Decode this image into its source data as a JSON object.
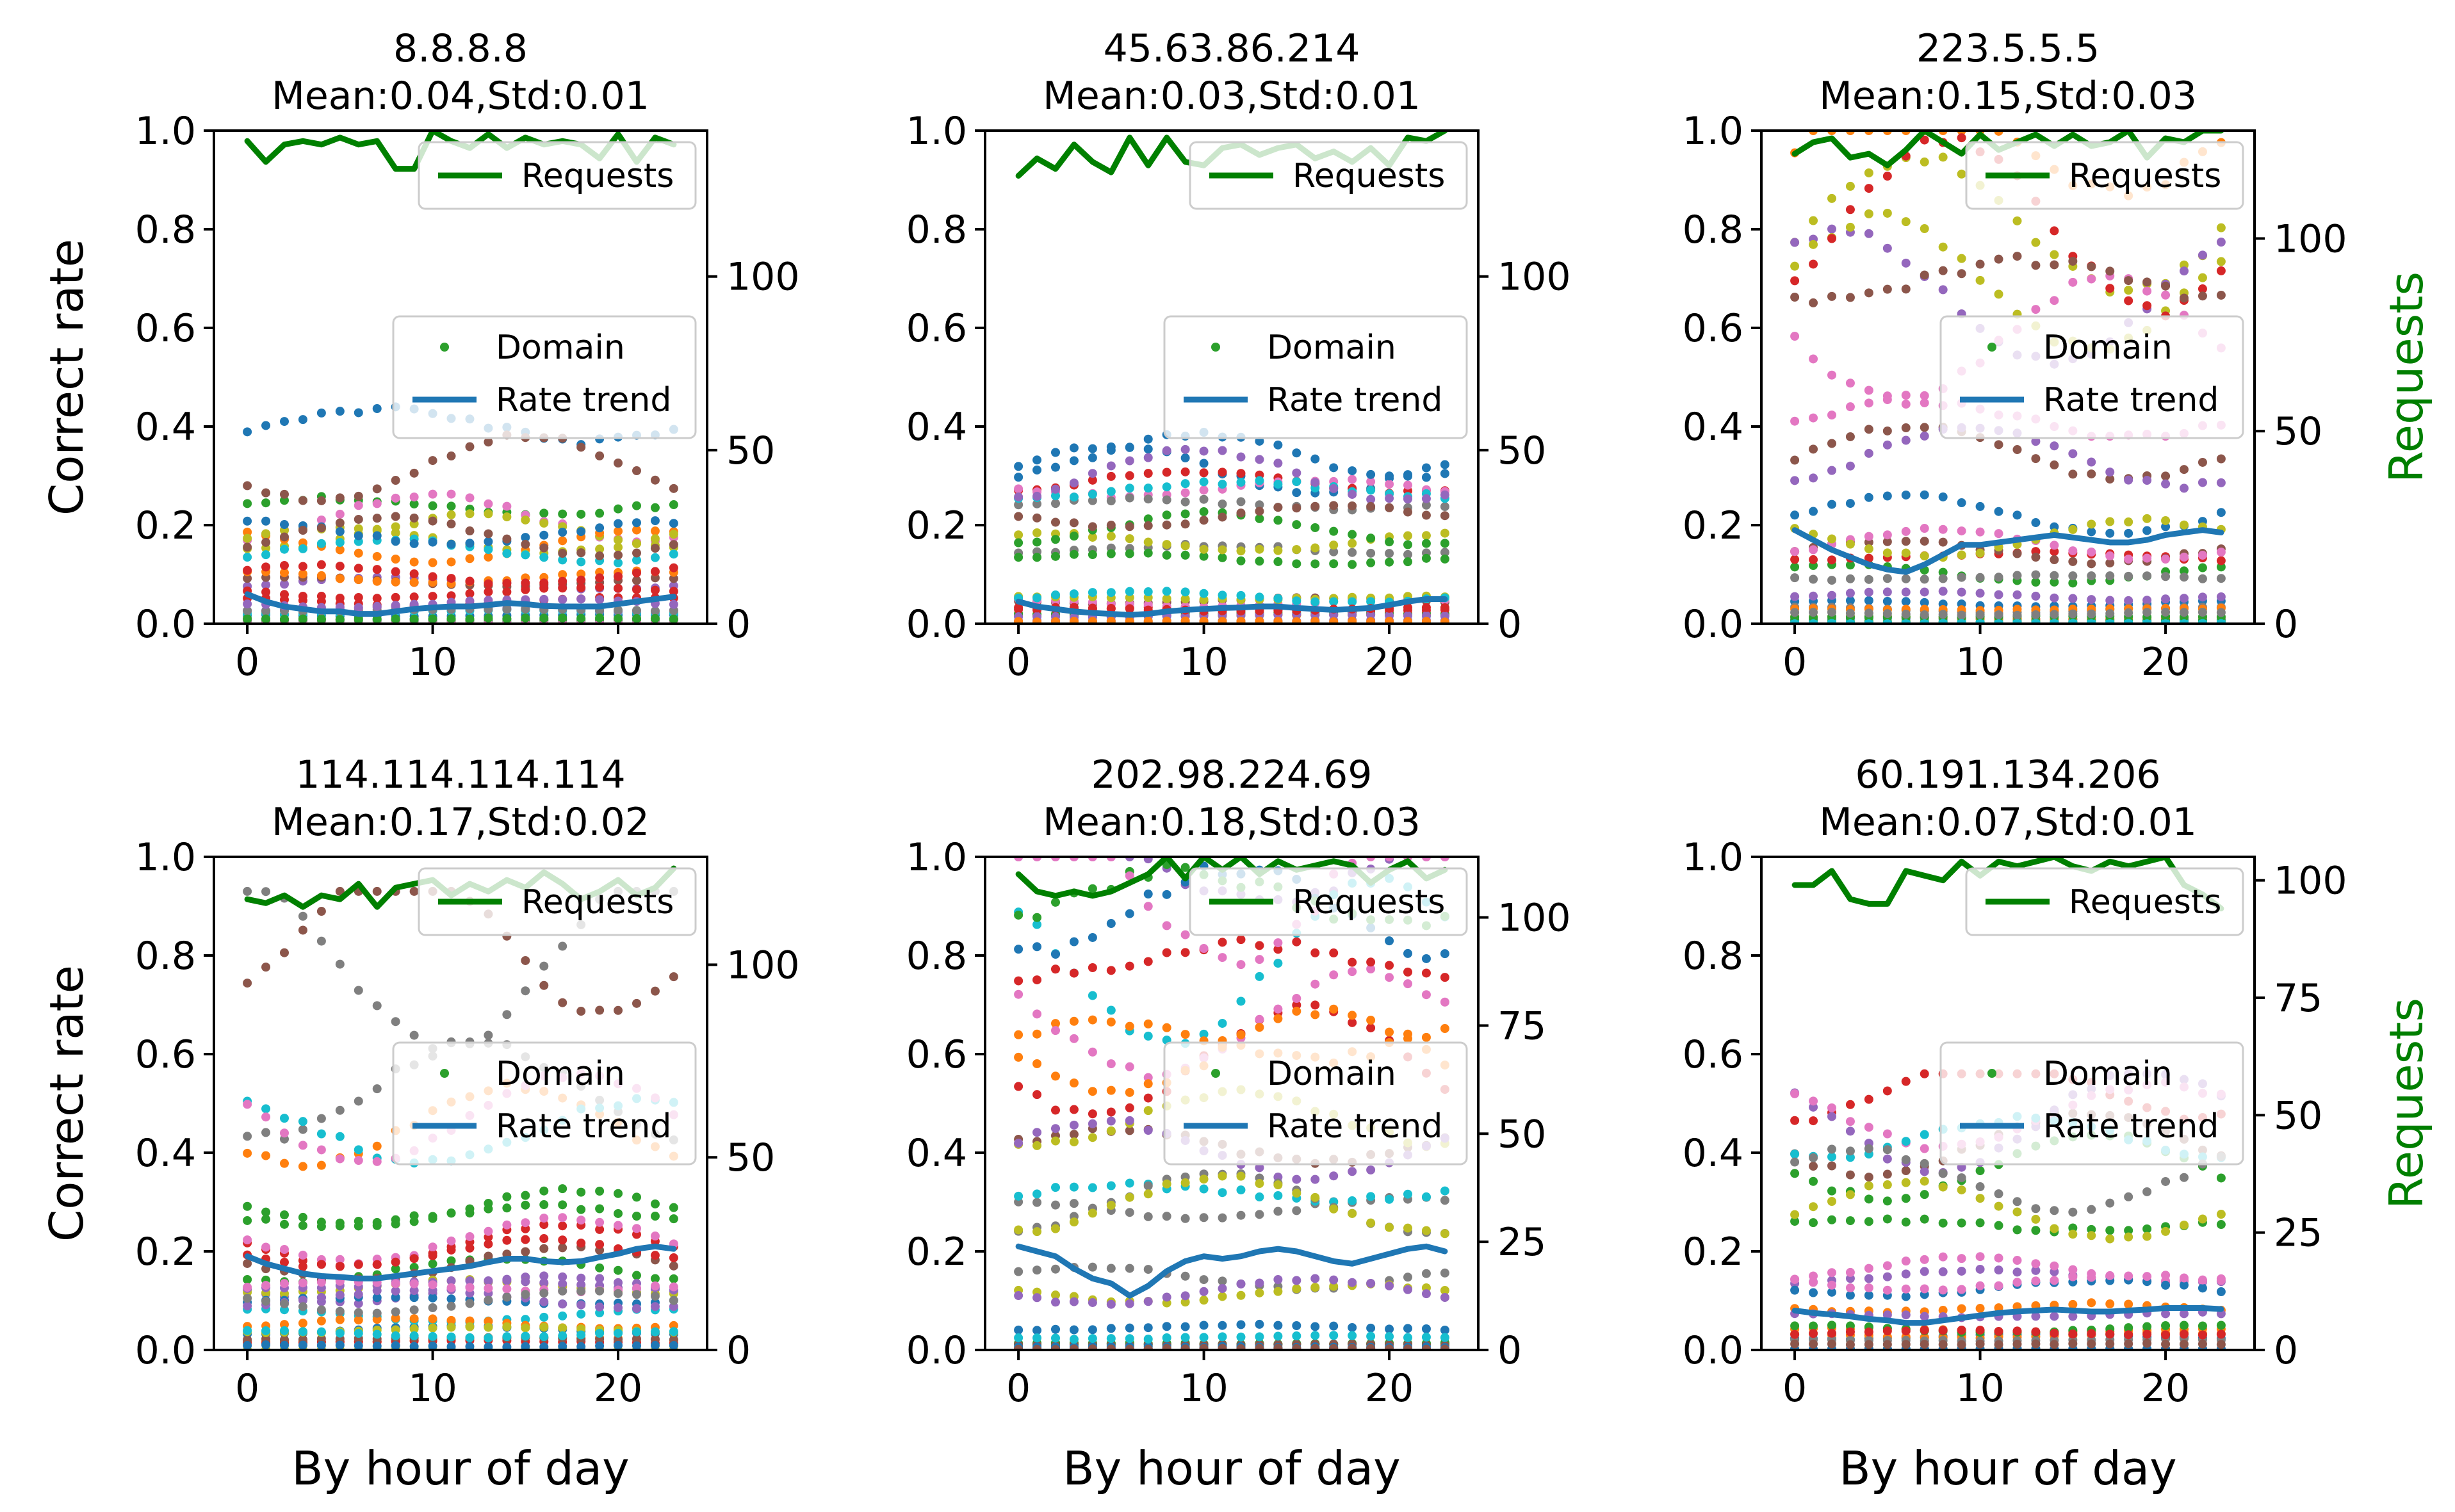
{
  "chart_data": {
    "type": "scatter",
    "layout": "2x3 grid of subplots with secondary (twin) y-axis",
    "shared": {
      "xlabel": "By hour of day",
      "ylabel_left": "Correct rate",
      "ylabel_right": "Requests",
      "ylim_left": [
        0,
        1
      ],
      "yticks_left": [
        "0.0",
        "0.2",
        "0.4",
        "0.6",
        "0.8",
        "1.0"
      ],
      "xlim": [
        -1.8,
        24.8
      ],
      "xticks": [
        0,
        10,
        20
      ],
      "xtick_labels": [
        "0",
        "10",
        "20"
      ],
      "hours": [
        0,
        1,
        2,
        3,
        4,
        5,
        6,
        7,
        8,
        9,
        10,
        11,
        12,
        13,
        14,
        15,
        16,
        17,
        18,
        19,
        20,
        21,
        22,
        23
      ],
      "legend_requests": "Requests",
      "legend_domain": "Domain",
      "legend_rate_trend": "Rate trend",
      "colors": {
        "requests": "#008000",
        "rate_trend": "#1f77b4",
        "ylabel_right": "#007f00",
        "domain_palette": [
          "#1f77b4",
          "#ff7f0e",
          "#2ca02c",
          "#d62728",
          "#9467bd",
          "#8c564b",
          "#e377c2",
          "#7f7f7f",
          "#bcbd22",
          "#17becf"
        ]
      }
    },
    "panels": [
      {
        "title_ip": "8.8.8.8",
        "title_stats": "Mean:0.04,Std:0.01",
        "right_ylim": [
          0,
          142
        ],
        "right_yticks": [
          0,
          50,
          100
        ],
        "requests": [
          139,
          133,
          138,
          139,
          138,
          140,
          138,
          139,
          131,
          131,
          142,
          139,
          137,
          141,
          137,
          140,
          138,
          139,
          138,
          134,
          141,
          133,
          140,
          138
        ],
        "rate_trend": [
          0.06,
          0.045,
          0.035,
          0.03,
          0.025,
          0.025,
          0.02,
          0.02,
          0.025,
          0.03,
          0.033,
          0.035,
          0.035,
          0.038,
          0.042,
          0.04,
          0.036,
          0.035,
          0.035,
          0.035,
          0.04,
          0.045,
          0.05,
          0.055
        ],
        "domain_max": 0.45,
        "domain_count": 26,
        "domain_seed": 11
      },
      {
        "title_ip": "45.63.86.214",
        "title_stats": "Mean:0.03,Std:0.01",
        "right_ylim": [
          0,
          142
        ],
        "right_yticks": [
          0,
          50,
          100
        ],
        "requests": [
          129,
          134,
          131,
          138,
          133,
          130,
          140,
          132,
          140,
          133,
          132,
          137,
          138,
          135,
          137,
          138,
          134,
          136,
          133,
          137,
          132,
          140,
          139,
          142
        ],
        "rate_trend": [
          0.045,
          0.035,
          0.03,
          0.025,
          0.022,
          0.02,
          0.018,
          0.02,
          0.025,
          0.028,
          0.03,
          0.032,
          0.033,
          0.035,
          0.035,
          0.032,
          0.03,
          0.028,
          0.03,
          0.032,
          0.038,
          0.045,
          0.05,
          0.05
        ],
        "domain_max": 0.42,
        "domain_count": 26,
        "domain_seed": 23
      },
      {
        "title_ip": "223.5.5.5",
        "title_stats": "Mean:0.15,Std:0.03",
        "right_ylim": [
          0,
          128
        ],
        "right_yticks": [
          0,
          50,
          100
        ],
        "requests": [
          122,
          125,
          126,
          121,
          122,
          119,
          123,
          128,
          125,
          122,
          127,
          123,
          125,
          127,
          124,
          127,
          124,
          125,
          128,
          121,
          126,
          125,
          128,
          128
        ],
        "rate_trend": [
          0.19,
          0.17,
          0.15,
          0.135,
          0.12,
          0.11,
          0.105,
          0.12,
          0.14,
          0.16,
          0.16,
          0.165,
          0.17,
          0.175,
          0.18,
          0.175,
          0.17,
          0.165,
          0.165,
          0.17,
          0.18,
          0.185,
          0.19,
          0.185
        ],
        "domain_max": 1.0,
        "domain_count": 30,
        "domain_seed": 37
      },
      {
        "title_ip": "114.114.114.114",
        "title_stats": "Mean:0.17,Std:0.02",
        "right_ylim": [
          0,
          128
        ],
        "right_yticks": [
          0,
          50,
          100
        ],
        "requests": [
          117,
          116,
          118,
          115,
          118,
          117,
          121,
          115,
          120,
          121,
          122,
          118,
          121,
          119,
          122,
          120,
          124,
          121,
          117,
          119,
          122,
          118,
          120,
          125
        ],
        "rate_trend": [
          0.19,
          0.175,
          0.165,
          0.155,
          0.15,
          0.148,
          0.145,
          0.145,
          0.15,
          0.155,
          0.16,
          0.165,
          0.17,
          0.178,
          0.185,
          0.185,
          0.18,
          0.178,
          0.18,
          0.188,
          0.195,
          0.205,
          0.21,
          0.205
        ],
        "domain_max": 0.93,
        "domain_count": 30,
        "domain_seed": 51
      },
      {
        "title_ip": "202.98.224.69",
        "title_stats": "Mean:0.18,Std:0.03",
        "right_ylim": [
          0,
          114
        ],
        "right_yticks": [
          0,
          25,
          50,
          75,
          100
        ],
        "requests": [
          110,
          106,
          105,
          106,
          105,
          106,
          108,
          110,
          114,
          109,
          114,
          111,
          114,
          110,
          113,
          111,
          112,
          113,
          112,
          108,
          111,
          113,
          109,
          111
        ],
        "rate_trend": [
          0.21,
          0.2,
          0.19,
          0.165,
          0.145,
          0.135,
          0.11,
          0.13,
          0.16,
          0.18,
          0.19,
          0.185,
          0.19,
          0.2,
          0.205,
          0.2,
          0.19,
          0.18,
          0.175,
          0.185,
          0.195,
          0.205,
          0.21,
          0.2
        ],
        "domain_max": 1.0,
        "domain_count": 30,
        "domain_seed": 67
      },
      {
        "title_ip": "60.191.134.206",
        "title_stats": "Mean:0.07,Std:0.01",
        "right_ylim": [
          0,
          105
        ],
        "right_yticks": [
          0,
          25,
          50,
          75,
          100
        ],
        "requests": [
          99,
          99,
          102,
          96,
          95,
          95,
          102,
          101,
          100,
          104,
          101,
          104,
          103,
          104,
          105,
          103,
          102,
          104,
          103,
          104,
          105,
          99,
          97,
          94
        ],
        "rate_trend": [
          0.08,
          0.075,
          0.072,
          0.068,
          0.063,
          0.06,
          0.055,
          0.055,
          0.06,
          0.065,
          0.07,
          0.075,
          0.078,
          0.08,
          0.082,
          0.08,
          0.078,
          0.078,
          0.08,
          0.082,
          0.085,
          0.085,
          0.085,
          0.083
        ],
        "domain_max": 0.56,
        "domain_count": 28,
        "domain_seed": 83
      }
    ]
  }
}
